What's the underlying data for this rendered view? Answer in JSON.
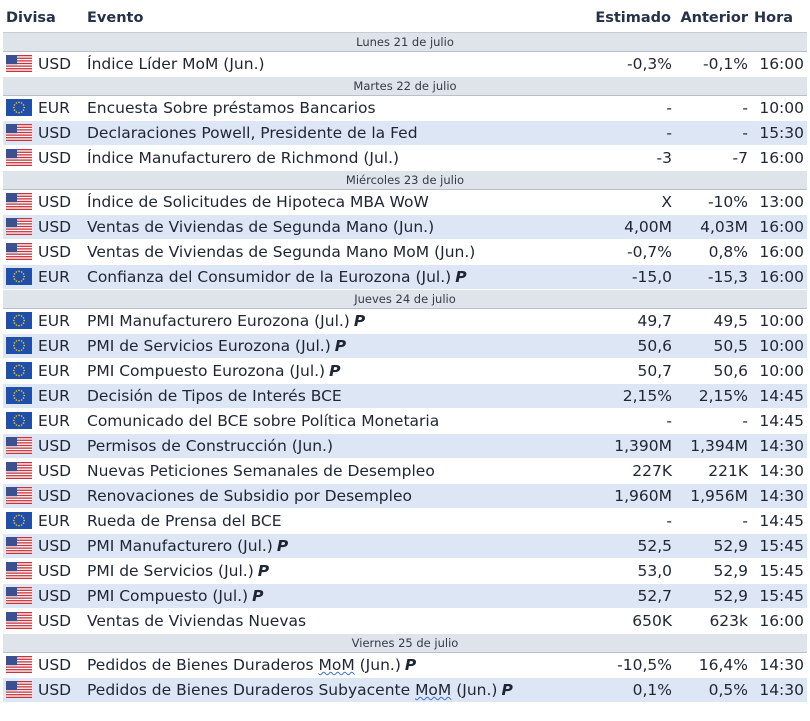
{
  "headers": {
    "currency": "Divisa",
    "event": "Evento",
    "estimate": "Estimado",
    "previous": "Anterior",
    "time": "Hora"
  },
  "pending_marker": "P",
  "days": [
    {
      "label": "Lunes 21 de julio",
      "events": [
        {
          "flag": "us-flag-icon",
          "currency": "USD",
          "event": "Índice Líder MoM (Jun.)",
          "estimate": "-0,3%",
          "previous": "-0,1%",
          "time": "16:00"
        }
      ]
    },
    {
      "label": "Martes 22 de julio",
      "events": [
        {
          "flag": "eu-flag-icon",
          "currency": "EUR",
          "event": "Encuesta Sobre préstamos Bancarios",
          "estimate": "-",
          "previous": "-",
          "time": "10:00"
        },
        {
          "flag": "us-flag-icon",
          "currency": "USD",
          "event": "Declaraciones Powell, Presidente de la Fed",
          "estimate": "-",
          "previous": "-",
          "time": "15:30"
        },
        {
          "flag": "us-flag-icon",
          "currency": "USD",
          "event": "Índice Manufacturero de Richmond (Jul.)",
          "estimate": "-3",
          "previous": "-7",
          "time": "16:00"
        }
      ]
    },
    {
      "label": "Miércoles 23 de julio",
      "events": [
        {
          "flag": "us-flag-icon",
          "currency": "USD",
          "event": "Índice de Solicitudes de Hipoteca MBA WoW",
          "estimate": "X",
          "previous": "-10%",
          "time": "13:00"
        },
        {
          "flag": "us-flag-icon",
          "currency": "USD",
          "event": "Ventas de Viviendas de Segunda Mano (Jun.)",
          "estimate": "4,00M",
          "previous": "4,03M",
          "time": "16:00"
        },
        {
          "flag": "us-flag-icon",
          "currency": "USD",
          "event": "Ventas de Viviendas de Segunda Mano MoM (Jun.)",
          "estimate": "-0,7%",
          "previous": "0,8%",
          "time": "16:00"
        },
        {
          "flag": "eu-flag-icon",
          "currency": "EUR",
          "event": "Confianza del Consumidor de la Eurozona (Jul.)",
          "pending": true,
          "estimate": "-15,0",
          "previous": "-15,3",
          "time": "16:00"
        }
      ]
    },
    {
      "label": "Jueves 24 de julio",
      "events": [
        {
          "flag": "eu-flag-icon",
          "currency": "EUR",
          "event": "PMI Manufacturero Eurozona (Jul.)",
          "pending": true,
          "estimate": "49,7",
          "previous": "49,5",
          "time": "10:00"
        },
        {
          "flag": "eu-flag-icon",
          "currency": "EUR",
          "event": "PMI de Servicios Eurozona (Jul.)",
          "pending": true,
          "estimate": "50,6",
          "previous": "50,5",
          "time": "10:00"
        },
        {
          "flag": "eu-flag-icon",
          "currency": "EUR",
          "event": "PMI Compuesto Eurozona (Jul.)",
          "pending": true,
          "estimate": "50,7",
          "previous": "50,6",
          "time": "10:00"
        },
        {
          "flag": "eu-flag-icon",
          "currency": "EUR",
          "event": "Decisión de Tipos de Interés BCE",
          "estimate": "2,15%",
          "previous": "2,15%",
          "time": "14:45"
        },
        {
          "flag": "eu-flag-icon",
          "currency": "EUR",
          "event": "Comunicado del BCE sobre Política Monetaria",
          "estimate": "-",
          "previous": "-",
          "time": "14:45"
        },
        {
          "flag": "us-flag-icon",
          "currency": "USD",
          "event": "Permisos de Construcción (Jun.)",
          "estimate": "1,390M",
          "previous": "1,394M",
          "time": "14:30"
        },
        {
          "flag": "us-flag-icon",
          "currency": "USD",
          "event": "Nuevas Peticiones Semanales de Desempleo",
          "estimate": "227K",
          "previous": "221K",
          "time": "14:30"
        },
        {
          "flag": "us-flag-icon",
          "currency": "USD",
          "event": "Renovaciones de Subsidio por Desempleo",
          "estimate": "1,960M",
          "previous": "1,956M",
          "time": "14:30"
        },
        {
          "flag": "eu-flag-icon",
          "currency": "EUR",
          "event": "Rueda de Prensa del BCE",
          "estimate": "-",
          "previous": "-",
          "time": "14:45"
        },
        {
          "flag": "us-flag-icon",
          "currency": "USD",
          "event": "PMI Manufacturero (Jul.)",
          "pending": true,
          "estimate": "52,5",
          "previous": "52,9",
          "time": "15:45"
        },
        {
          "flag": "us-flag-icon",
          "currency": "USD",
          "event": "PMI de Servicios (Jul.)",
          "pending": true,
          "estimate": "53,0",
          "previous": "52,9",
          "time": "15:45"
        },
        {
          "flag": "us-flag-icon",
          "currency": "USD",
          "event": "PMI Compuesto (Jul.)",
          "pending": true,
          "estimate": "52,7",
          "previous": "52,9",
          "time": "15:45"
        },
        {
          "flag": "us-flag-icon",
          "currency": "USD",
          "event": "Ventas de Viviendas Nuevas",
          "estimate": "650K",
          "previous": "623k",
          "time": "16:00"
        }
      ]
    },
    {
      "label": "Viernes 25 de julio",
      "events": [
        {
          "flag": "us-flag-icon",
          "currency": "USD",
          "event_pre": "Pedidos de Bienes Duraderos ",
          "event_mark": "MoM",
          "event_post": " (Jun.)",
          "pending": true,
          "estimate": "-10,5%",
          "previous": "16,4%",
          "time": "14:30"
        },
        {
          "flag": "us-flag-icon",
          "currency": "USD",
          "event_pre": "Pedidos de Bienes Duraderos Subyacente ",
          "event_mark": "MoM",
          "event_post": " (Jun.)",
          "pending": true,
          "estimate": "0,1%",
          "previous": "0,5%",
          "time": "14:30"
        }
      ]
    }
  ],
  "colors": {
    "row_alt": "#dce6f4",
    "day_header": "#dfe3ea",
    "spellcheck_underline": "#3b6fd8"
  }
}
